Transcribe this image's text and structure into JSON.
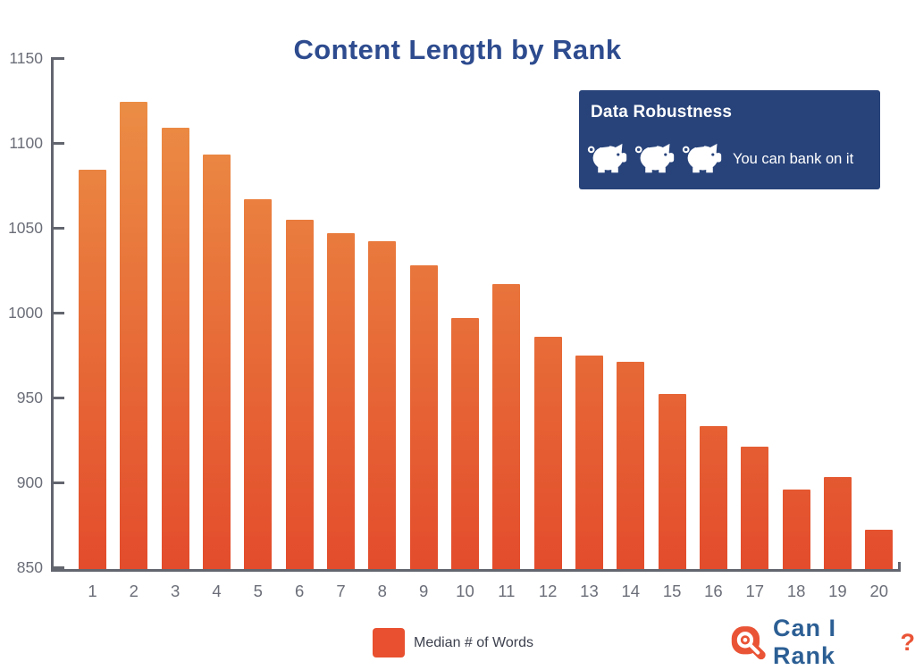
{
  "title": "Content Length by Rank",
  "badge": {
    "title": "Data Robustness",
    "caption": "You can bank on it",
    "rating": 3,
    "rating_icon": "piggy-bank"
  },
  "legend": {
    "label": "Median # of Words"
  },
  "logo": {
    "text": "Can I Rank",
    "mark": "?"
  },
  "colors": {
    "title": "#2d4b8e",
    "badge_bg": "#28437a",
    "badge_text": "#ffffff",
    "axis": "#63666f",
    "tick_label": "#6b6e78",
    "bar_top": "#ec9347",
    "bar_bottom": "#e34c2c",
    "legend_swatch": "#e8502f",
    "legend_text": "#3d414e",
    "logo_blue": "#2c5f94",
    "logo_orange": "#ea5436"
  },
  "chart_data": {
    "type": "bar",
    "title": "Content Length by Rank",
    "series_name": "Median # of Words",
    "categories": [
      "1",
      "2",
      "3",
      "4",
      "5",
      "6",
      "7",
      "8",
      "9",
      "10",
      "11",
      "12",
      "13",
      "14",
      "15",
      "16",
      "17",
      "18",
      "19",
      "20"
    ],
    "values": [
      1084,
      1124,
      1109,
      1093,
      1067,
      1055,
      1047,
      1042,
      1028,
      997,
      1017,
      986,
      975,
      971,
      952,
      933,
      921,
      896,
      903,
      872
    ],
    "xlabel": "",
    "ylabel": "",
    "ylim": [
      850,
      1150
    ],
    "yticks": [
      850,
      900,
      950,
      1000,
      1050,
      1100,
      1150
    ],
    "grid": false,
    "legend_position": "bottom"
  }
}
